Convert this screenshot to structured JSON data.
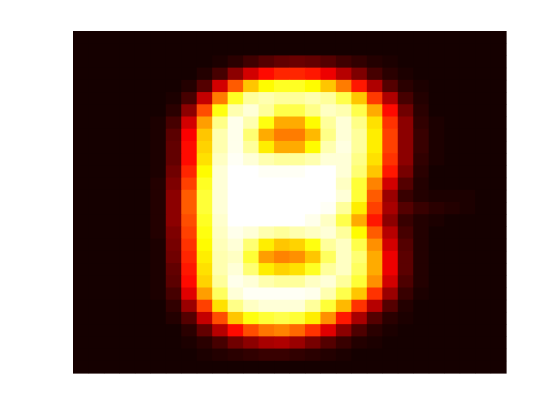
{
  "chart_data": {
    "type": "heatmap",
    "colormap": "hot",
    "value_range": [
      0,
      1
    ],
    "rows": 28,
    "cols": 28,
    "axes_visible": false,
    "title": "",
    "xlabel": "",
    "ylabel": "",
    "values": [
      [
        0.03,
        0.03,
        0.03,
        0.03,
        0.03,
        0.03,
        0.03,
        0.03,
        0.03,
        0.03,
        0.03,
        0.03,
        0.03,
        0.03,
        0.03,
        0.03,
        0.03,
        0.03,
        0.03,
        0.03,
        0.03,
        0.03,
        0.03,
        0.03,
        0.03,
        0.03,
        0.03,
        0.03
      ],
      [
        0.03,
        0.03,
        0.03,
        0.03,
        0.03,
        0.03,
        0.03,
        0.03,
        0.03,
        0.03,
        0.03,
        0.03,
        0.03,
        0.03,
        0.03,
        0.03,
        0.03,
        0.03,
        0.03,
        0.03,
        0.03,
        0.03,
        0.03,
        0.03,
        0.03,
        0.03,
        0.03,
        0.03
      ],
      [
        0.03,
        0.03,
        0.03,
        0.03,
        0.03,
        0.03,
        0.03,
        0.03,
        0.03,
        0.04,
        0.06,
        0.09,
        0.12,
        0.14,
        0.15,
        0.14,
        0.12,
        0.09,
        0.07,
        0.05,
        0.04,
        0.03,
        0.03,
        0.03,
        0.03,
        0.03,
        0.03,
        0.03
      ],
      [
        0.03,
        0.03,
        0.03,
        0.03,
        0.03,
        0.03,
        0.03,
        0.03,
        0.05,
        0.1,
        0.2,
        0.3,
        0.38,
        0.42,
        0.42,
        0.4,
        0.34,
        0.26,
        0.18,
        0.1,
        0.06,
        0.04,
        0.03,
        0.03,
        0.03,
        0.03,
        0.03,
        0.03
      ],
      [
        0.03,
        0.03,
        0.03,
        0.03,
        0.03,
        0.03,
        0.03,
        0.05,
        0.12,
        0.3,
        0.5,
        0.66,
        0.74,
        0.78,
        0.78,
        0.74,
        0.66,
        0.55,
        0.4,
        0.25,
        0.12,
        0.06,
        0.04,
        0.03,
        0.03,
        0.03,
        0.03,
        0.03
      ],
      [
        0.03,
        0.03,
        0.03,
        0.03,
        0.03,
        0.03,
        0.04,
        0.1,
        0.28,
        0.55,
        0.78,
        0.9,
        0.92,
        0.9,
        0.9,
        0.92,
        0.9,
        0.82,
        0.66,
        0.45,
        0.25,
        0.1,
        0.05,
        0.03,
        0.03,
        0.03,
        0.03,
        0.03
      ],
      [
        0.03,
        0.03,
        0.03,
        0.03,
        0.03,
        0.03,
        0.06,
        0.2,
        0.48,
        0.76,
        0.92,
        0.96,
        0.9,
        0.82,
        0.82,
        0.88,
        0.94,
        0.92,
        0.82,
        0.62,
        0.38,
        0.16,
        0.06,
        0.03,
        0.03,
        0.03,
        0.03,
        0.03
      ],
      [
        0.03,
        0.03,
        0.03,
        0.03,
        0.03,
        0.04,
        0.1,
        0.3,
        0.6,
        0.88,
        0.98,
        0.92,
        0.76,
        0.62,
        0.62,
        0.74,
        0.9,
        0.96,
        0.88,
        0.7,
        0.44,
        0.2,
        0.07,
        0.04,
        0.03,
        0.03,
        0.03,
        0.03
      ],
      [
        0.03,
        0.03,
        0.03,
        0.03,
        0.03,
        0.04,
        0.13,
        0.36,
        0.66,
        0.92,
        0.98,
        0.86,
        0.62,
        0.55,
        0.55,
        0.64,
        0.88,
        0.96,
        0.9,
        0.72,
        0.46,
        0.2,
        0.08,
        0.04,
        0.03,
        0.03,
        0.03,
        0.03
      ],
      [
        0.03,
        0.03,
        0.03,
        0.03,
        0.03,
        0.04,
        0.14,
        0.38,
        0.68,
        0.92,
        0.98,
        0.9,
        0.72,
        0.62,
        0.62,
        0.74,
        0.92,
        0.97,
        0.9,
        0.72,
        0.46,
        0.2,
        0.08,
        0.04,
        0.03,
        0.03,
        0.03,
        0.03
      ],
      [
        0.03,
        0.03,
        0.03,
        0.03,
        0.03,
        0.04,
        0.14,
        0.38,
        0.7,
        0.94,
        0.99,
        0.96,
        0.92,
        0.9,
        0.9,
        0.92,
        0.96,
        0.96,
        0.88,
        0.7,
        0.44,
        0.2,
        0.07,
        0.04,
        0.03,
        0.03,
        0.03,
        0.03
      ],
      [
        0.03,
        0.03,
        0.03,
        0.03,
        0.03,
        0.04,
        0.16,
        0.42,
        0.74,
        0.96,
        1.0,
        1.0,
        0.99,
        0.99,
        0.99,
        1.0,
        1.0,
        0.96,
        0.86,
        0.66,
        0.4,
        0.17,
        0.06,
        0.03,
        0.03,
        0.03,
        0.03,
        0.03
      ],
      [
        0.03,
        0.03,
        0.03,
        0.03,
        0.03,
        0.05,
        0.18,
        0.46,
        0.78,
        0.96,
        1.0,
        1.0,
        1.0,
        1.0,
        1.0,
        1.0,
        1.0,
        0.94,
        0.8,
        0.56,
        0.3,
        0.12,
        0.05,
        0.03,
        0.03,
        0.03,
        0.03,
        0.03
      ],
      [
        0.03,
        0.03,
        0.03,
        0.03,
        0.03,
        0.05,
        0.2,
        0.5,
        0.8,
        0.96,
        1.0,
        1.0,
        1.0,
        1.0,
        1.0,
        1.0,
        1.0,
        0.96,
        0.8,
        0.5,
        0.22,
        0.08,
        0.05,
        0.04,
        0.04,
        0.04,
        0.03,
        0.03
      ],
      [
        0.03,
        0.03,
        0.03,
        0.03,
        0.03,
        0.05,
        0.2,
        0.5,
        0.8,
        0.96,
        1.0,
        1.0,
        1.0,
        1.0,
        1.0,
        1.0,
        0.99,
        0.9,
        0.72,
        0.46,
        0.24,
        0.12,
        0.08,
        0.06,
        0.05,
        0.04,
        0.03,
        0.03
      ],
      [
        0.03,
        0.03,
        0.03,
        0.03,
        0.03,
        0.05,
        0.2,
        0.48,
        0.78,
        0.95,
        1.0,
        1.0,
        1.0,
        1.0,
        1.0,
        0.98,
        0.94,
        0.82,
        0.62,
        0.4,
        0.2,
        0.08,
        0.05,
        0.04,
        0.03,
        0.03,
        0.03,
        0.03
      ],
      [
        0.03,
        0.03,
        0.03,
        0.03,
        0.03,
        0.05,
        0.18,
        0.46,
        0.76,
        0.94,
        0.98,
        0.96,
        0.92,
        0.9,
        0.92,
        0.94,
        0.96,
        0.9,
        0.74,
        0.5,
        0.26,
        0.1,
        0.05,
        0.03,
        0.03,
        0.03,
        0.03,
        0.03
      ],
      [
        0.03,
        0.03,
        0.03,
        0.03,
        0.03,
        0.04,
        0.17,
        0.44,
        0.74,
        0.93,
        0.96,
        0.86,
        0.72,
        0.66,
        0.68,
        0.76,
        0.9,
        0.94,
        0.82,
        0.58,
        0.3,
        0.12,
        0.05,
        0.03,
        0.03,
        0.03,
        0.03,
        0.03
      ],
      [
        0.03,
        0.03,
        0.03,
        0.03,
        0.03,
        0.04,
        0.16,
        0.42,
        0.72,
        0.92,
        0.94,
        0.8,
        0.6,
        0.56,
        0.58,
        0.66,
        0.84,
        0.94,
        0.86,
        0.62,
        0.34,
        0.13,
        0.05,
        0.03,
        0.03,
        0.03,
        0.03,
        0.03
      ],
      [
        0.03,
        0.03,
        0.03,
        0.03,
        0.03,
        0.04,
        0.14,
        0.4,
        0.7,
        0.92,
        0.96,
        0.86,
        0.72,
        0.68,
        0.7,
        0.78,
        0.9,
        0.94,
        0.84,
        0.62,
        0.34,
        0.13,
        0.05,
        0.03,
        0.03,
        0.03,
        0.03,
        0.03
      ],
      [
        0.03,
        0.03,
        0.03,
        0.03,
        0.03,
        0.04,
        0.13,
        0.38,
        0.68,
        0.9,
        0.98,
        0.96,
        0.92,
        0.9,
        0.9,
        0.94,
        0.96,
        0.9,
        0.8,
        0.58,
        0.3,
        0.11,
        0.05,
        0.03,
        0.03,
        0.03,
        0.03,
        0.03
      ],
      [
        0.03,
        0.03,
        0.03,
        0.03,
        0.03,
        0.04,
        0.1,
        0.32,
        0.6,
        0.84,
        0.96,
        0.99,
        0.99,
        0.99,
        0.99,
        0.98,
        0.92,
        0.82,
        0.66,
        0.44,
        0.22,
        0.08,
        0.04,
        0.03,
        0.03,
        0.03,
        0.03,
        0.03
      ],
      [
        0.03,
        0.03,
        0.03,
        0.03,
        0.03,
        0.03,
        0.07,
        0.22,
        0.46,
        0.7,
        0.88,
        0.94,
        0.96,
        0.96,
        0.96,
        0.9,
        0.8,
        0.64,
        0.44,
        0.26,
        0.12,
        0.05,
        0.03,
        0.03,
        0.03,
        0.03,
        0.03,
        0.03
      ],
      [
        0.03,
        0.03,
        0.03,
        0.03,
        0.03,
        0.03,
        0.05,
        0.12,
        0.28,
        0.48,
        0.66,
        0.76,
        0.8,
        0.82,
        0.8,
        0.72,
        0.58,
        0.4,
        0.24,
        0.12,
        0.06,
        0.04,
        0.03,
        0.03,
        0.03,
        0.03,
        0.03,
        0.03
      ],
      [
        0.03,
        0.03,
        0.03,
        0.03,
        0.03,
        0.03,
        0.03,
        0.06,
        0.14,
        0.26,
        0.38,
        0.48,
        0.54,
        0.56,
        0.52,
        0.44,
        0.32,
        0.2,
        0.11,
        0.06,
        0.04,
        0.03,
        0.03,
        0.03,
        0.03,
        0.03,
        0.03,
        0.03
      ],
      [
        0.03,
        0.03,
        0.03,
        0.03,
        0.03,
        0.03,
        0.03,
        0.04,
        0.06,
        0.1,
        0.16,
        0.2,
        0.24,
        0.25,
        0.22,
        0.17,
        0.12,
        0.08,
        0.05,
        0.04,
        0.03,
        0.03,
        0.03,
        0.03,
        0.03,
        0.03,
        0.03,
        0.03
      ],
      [
        0.03,
        0.03,
        0.03,
        0.03,
        0.03,
        0.03,
        0.03,
        0.03,
        0.04,
        0.05,
        0.06,
        0.07,
        0.08,
        0.08,
        0.07,
        0.06,
        0.05,
        0.04,
        0.03,
        0.03,
        0.03,
        0.03,
        0.03,
        0.03,
        0.03,
        0.03,
        0.03,
        0.03
      ],
      [
        0.03,
        0.03,
        0.03,
        0.03,
        0.03,
        0.03,
        0.03,
        0.03,
        0.03,
        0.03,
        0.03,
        0.03,
        0.03,
        0.03,
        0.03,
        0.03,
        0.03,
        0.03,
        0.03,
        0.03,
        0.03,
        0.03,
        0.03,
        0.03,
        0.03,
        0.03,
        0.03,
        0.03
      ]
    ]
  }
}
